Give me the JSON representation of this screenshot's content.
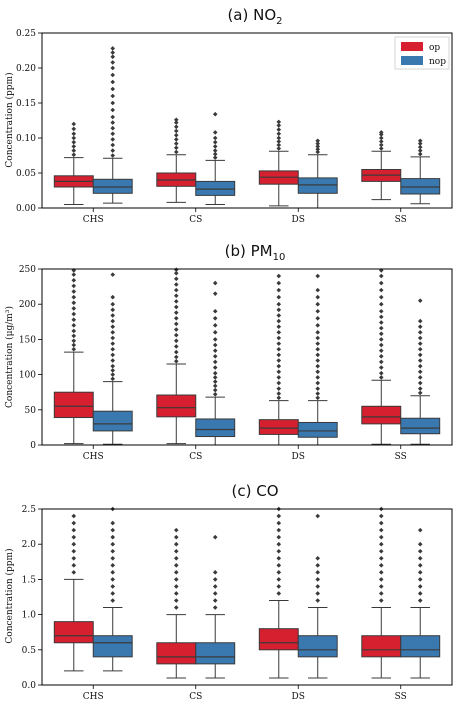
{
  "colors": {
    "op": "#d62030",
    "nop": "#3a78b0"
  },
  "chart_data": [
    {
      "type": "box",
      "title": "(a) NO",
      "title_sub": "2",
      "ylabel": "Concentration (ppm)",
      "ylim": [
        0,
        0.25
      ],
      "yticks": [
        "0.00",
        "0.05",
        "0.10",
        "0.15",
        "0.20",
        "0.25"
      ],
      "categories": [
        "CHS",
        "CS",
        "DS",
        "SS"
      ],
      "legend": [
        "op",
        "nop"
      ],
      "series": [
        {
          "name": "op",
          "boxes": [
            {
              "min": 0.005,
              "q1": 0.03,
              "median": 0.038,
              "q3": 0.046,
              "max": 0.072,
              "outliers": [
                0.076,
                0.082,
                0.088,
                0.094,
                0.1,
                0.106,
                0.113,
                0.12
              ]
            },
            {
              "min": 0.008,
              "q1": 0.031,
              "median": 0.04,
              "q3": 0.05,
              "max": 0.076,
              "outliers": [
                0.08,
                0.086,
                0.092,
                0.098,
                0.104,
                0.11,
                0.116,
                0.122,
                0.126
              ]
            },
            {
              "min": 0.003,
              "q1": 0.034,
              "median": 0.044,
              "q3": 0.053,
              "max": 0.081,
              "outliers": [
                0.085,
                0.09,
                0.095,
                0.1,
                0.106,
                0.112,
                0.118,
                0.123
              ]
            },
            {
              "min": 0.012,
              "q1": 0.038,
              "median": 0.047,
              "q3": 0.055,
              "max": 0.081,
              "outliers": [
                0.085,
                0.09,
                0.095,
                0.1,
                0.105,
                0.108
              ]
            }
          ]
        },
        {
          "name": "nop",
          "boxes": [
            {
              "min": 0.007,
              "q1": 0.021,
              "median": 0.03,
              "q3": 0.041,
              "max": 0.071,
              "outliers": [
                0.075,
                0.082,
                0.09,
                0.098,
                0.106,
                0.114,
                0.122,
                0.13,
                0.14,
                0.15,
                0.16,
                0.17,
                0.18,
                0.19,
                0.2,
                0.208,
                0.216,
                0.222,
                0.228
              ]
            },
            {
              "min": 0.005,
              "q1": 0.018,
              "median": 0.027,
              "q3": 0.038,
              "max": 0.068,
              "outliers": [
                0.072,
                0.077,
                0.082,
                0.088,
                0.094,
                0.1,
                0.108,
                0.134
              ]
            },
            {
              "min": 0.0,
              "q1": 0.021,
              "median": 0.033,
              "q3": 0.043,
              "max": 0.076,
              "outliers": [
                0.08,
                0.084,
                0.088,
                0.092,
                0.096
              ]
            },
            {
              "min": 0.006,
              "q1": 0.02,
              "median": 0.03,
              "q3": 0.042,
              "max": 0.073,
              "outliers": [
                0.077,
                0.082,
                0.087,
                0.092,
                0.096
              ]
            }
          ]
        }
      ]
    },
    {
      "type": "box",
      "title": "(b) PM",
      "title_sub": "10",
      "ylabel": "Concentration (μg/m³)",
      "ylim": [
        0,
        250
      ],
      "yticks": [
        "0",
        "50",
        "100",
        "150",
        "200",
        "250"
      ],
      "categories": [
        "CHS",
        "CS",
        "DS",
        "SS"
      ],
      "legend": [],
      "series": [
        {
          "name": "op",
          "boxes": [
            {
              "min": 2,
              "q1": 39,
              "median": 55,
              "q3": 75,
              "max": 132,
              "outliers": [
                136,
                142,
                148,
                155,
                162,
                170,
                178,
                186,
                194,
                202,
                210,
                218,
                226,
                234,
                242,
                248
              ]
            },
            {
              "min": 2,
              "q1": 40,
              "median": 53,
              "q3": 71,
              "max": 115,
              "outliers": [
                119,
                125,
                132,
                140,
                148,
                156,
                164,
                172,
                180,
                188,
                196,
                204,
                212,
                220,
                228,
                236,
                244,
                249
              ]
            },
            {
              "min": 0,
              "q1": 15,
              "median": 24,
              "q3": 36,
              "max": 63,
              "outliers": [
                67,
                73,
                80,
                88,
                96,
                104,
                112,
                120,
                128,
                136,
                144,
                152,
                160,
                168,
                176,
                184,
                192,
                200,
                210,
                220,
                230,
                240
              ]
            },
            {
              "min": 1,
              "q1": 30,
              "median": 40,
              "q3": 55,
              "max": 92,
              "outliers": [
                96,
                102,
                110,
                118,
                126,
                134,
                142,
                150,
                158,
                166,
                174,
                182,
                190,
                200,
                210,
                220,
                230,
                240,
                248
              ]
            }
          ]
        },
        {
          "name": "nop",
          "boxes": [
            {
              "min": 1,
              "q1": 20,
              "median": 30,
              "q3": 48,
              "max": 90,
              "outliers": [
                94,
                100,
                106,
                112,
                120,
                128,
                136,
                144,
                152,
                160,
                168,
                176,
                184,
                192,
                200,
                210,
                242
              ]
            },
            {
              "min": 0,
              "q1": 12,
              "median": 22,
              "q3": 37,
              "max": 68,
              "outliers": [
                72,
                78,
                84,
                90,
                96,
                102,
                110,
                118,
                126,
                134,
                142,
                150,
                160,
                170,
                180,
                190,
                215,
                230
              ]
            },
            {
              "min": 0,
              "q1": 11,
              "median": 20,
              "q3": 32,
              "max": 63,
              "outliers": [
                67,
                73,
                80,
                88,
                96,
                104,
                112,
                120,
                128,
                136,
                144,
                152,
                160,
                170,
                180,
                190,
                200,
                210,
                220,
                240
              ]
            },
            {
              "min": 1,
              "q1": 16,
              "median": 24,
              "q3": 38,
              "max": 70,
              "outliers": [
                74,
                80,
                88,
                96,
                104,
                112,
                120,
                128,
                136,
                144,
                152,
                160,
                168,
                176,
                205
              ]
            }
          ]
        }
      ]
    },
    {
      "type": "box",
      "title": "(c) CO",
      "title_sub": "",
      "ylabel": "Concentration (ppm)",
      "ylim": [
        0,
        2.5
      ],
      "yticks": [
        "0.0",
        "0.5",
        "1.0",
        "1.5",
        "2.0",
        "2.5"
      ],
      "categories": [
        "CHS",
        "CS",
        "DS",
        "SS"
      ],
      "legend": [],
      "series": [
        {
          "name": "op",
          "boxes": [
            {
              "min": 0.2,
              "q1": 0.6,
              "median": 0.7,
              "q3": 0.9,
              "max": 1.5,
              "outliers": [
                1.6,
                1.7,
                1.8,
                1.9,
                2.0,
                2.1,
                2.2,
                2.3,
                2.4
              ]
            },
            {
              "min": 0.1,
              "q1": 0.3,
              "median": 0.4,
              "q3": 0.6,
              "max": 1.0,
              "outliers": [
                1.1,
                1.2,
                1.3,
                1.4,
                1.5,
                1.6,
                1.7,
                1.8,
                1.9,
                2.0,
                2.1,
                2.2
              ]
            },
            {
              "min": 0.1,
              "q1": 0.5,
              "median": 0.6,
              "q3": 0.8,
              "max": 1.2,
              "outliers": [
                1.3,
                1.4,
                1.5,
                1.6,
                1.7,
                1.8,
                1.9,
                2.0,
                2.1,
                2.2,
                2.3,
                2.4,
                2.5
              ]
            },
            {
              "min": 0.1,
              "q1": 0.4,
              "median": 0.5,
              "q3": 0.7,
              "max": 1.1,
              "outliers": [
                1.2,
                1.3,
                1.4,
                1.5,
                1.6,
                1.7,
                1.8,
                1.9,
                2.0,
                2.1,
                2.2,
                2.3,
                2.4,
                2.5
              ]
            }
          ]
        },
        {
          "name": "nop",
          "boxes": [
            {
              "min": 0.2,
              "q1": 0.4,
              "median": 0.6,
              "q3": 0.7,
              "max": 1.1,
              "outliers": [
                1.2,
                1.3,
                1.4,
                1.5,
                1.6,
                1.7,
                1.8,
                1.9,
                2.0,
                2.1,
                2.2,
                2.3,
                2.5
              ]
            },
            {
              "min": 0.1,
              "q1": 0.3,
              "median": 0.4,
              "q3": 0.6,
              "max": 1.0,
              "outliers": [
                1.1,
                1.2,
                1.3,
                1.4,
                1.5,
                1.6,
                2.1
              ]
            },
            {
              "min": 0.1,
              "q1": 0.4,
              "median": 0.5,
              "q3": 0.7,
              "max": 1.1,
              "outliers": [
                1.2,
                1.3,
                1.4,
                1.5,
                1.6,
                1.7,
                1.8,
                2.4
              ]
            },
            {
              "min": 0.1,
              "q1": 0.4,
              "median": 0.5,
              "q3": 0.7,
              "max": 1.1,
              "outliers": [
                1.2,
                1.3,
                1.4,
                1.5,
                1.6,
                1.7,
                1.8,
                1.9,
                2.0,
                2.2
              ]
            }
          ]
        }
      ]
    }
  ]
}
